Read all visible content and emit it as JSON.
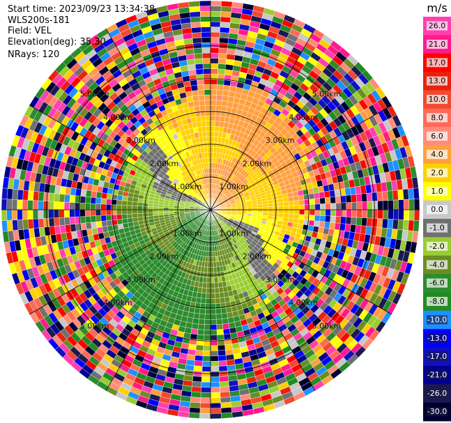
{
  "info": {
    "start_time": "Start time: 2023/09/23 13:34:38",
    "instrument": "WLS200s-181",
    "field": "Field: VEL",
    "elevation": "Elevation(deg): 35.30",
    "nrays": "NRays: 120"
  },
  "chart_data": {
    "type": "heatmap",
    "projection": "polar-ppi",
    "field": "VEL",
    "units": "m/s",
    "nrays": 120,
    "elevation_deg": 35.3,
    "range_rings_km": [
      1.0,
      2.0,
      3.0,
      4.0,
      5.0
    ],
    "ring_labels": [
      "1.00km",
      "2.00km",
      "3.00km",
      "4.00km",
      "5.00km"
    ],
    "colorbar": {
      "ticks": [
        "26.0",
        "21.0",
        "17.0",
        "13.0",
        "10.0",
        "8.0",
        "6.0",
        "4.0",
        "2.0",
        "1.0",
        "0.0",
        "-1.0",
        "-2.0",
        "-4.0",
        "-6.0",
        "-8.0",
        "-10.0",
        "-13.0",
        "-17.0",
        "-21.0",
        "-26.0",
        "-30.0"
      ],
      "colors": [
        "#ff3fb0",
        "#ff1a8c",
        "#ff0000",
        "#e8220e",
        "#f04a30",
        "#ff6a58",
        "#ff8c78",
        "#ffa040",
        "#ffd000",
        "#ffff00",
        "#c8c8c8",
        "#707070",
        "#9acd32",
        "#6b8e23",
        "#2e8b2e",
        "#228b22",
        "#1e90ff",
        "#0000ff",
        "#1010c0",
        "#000090",
        "#1a1a50",
        "#000030"
      ]
    }
  }
}
